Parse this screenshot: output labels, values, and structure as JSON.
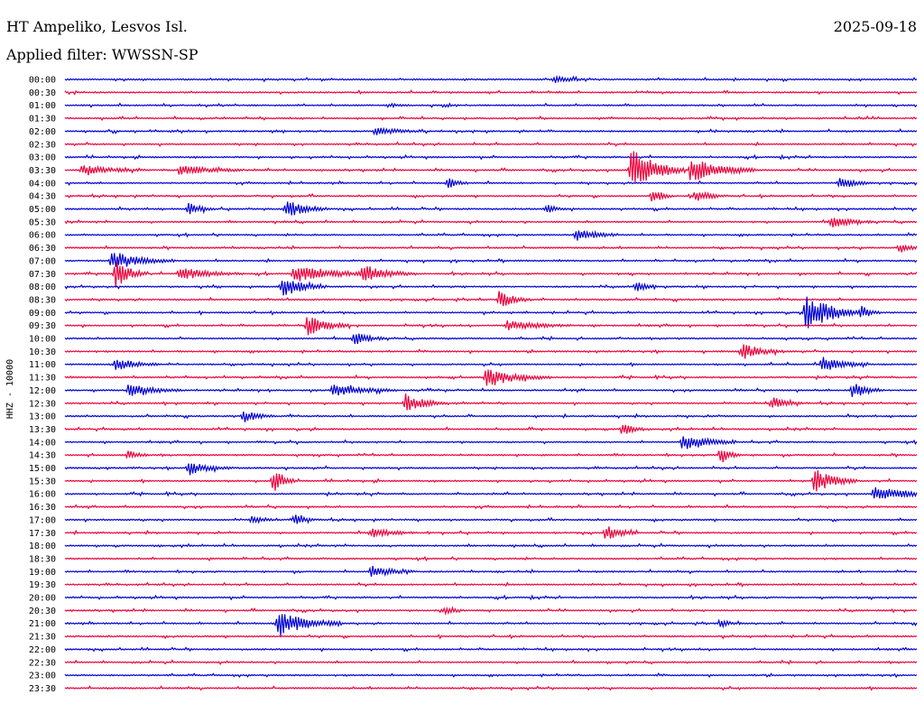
{
  "header": {
    "station": "HT Ampeliko, Lesvos Isl.",
    "date": "2025-09-18",
    "filter": "Applied filter: WWSSN-SP"
  },
  "side_label": "HHZ - 10000",
  "colors": {
    "blue": "#0000d8",
    "red": "#f0003c"
  },
  "chart_data": {
    "type": "line",
    "title": "HT Ampeliko, Lesvos Isl.",
    "subtitle": "Applied filter: WWSSN-SP",
    "ylabel": "HHZ - 10000",
    "y_categories": [
      "00:00",
      "00:30",
      "01:00",
      "01:30",
      "02:00",
      "02:30",
      "03:00",
      "03:30",
      "04:00",
      "04:30",
      "05:00",
      "05:30",
      "06:00",
      "06:30",
      "07:00",
      "07:30",
      "08:00",
      "08:30",
      "09:00",
      "09:30",
      "10:00",
      "10:30",
      "11:00",
      "11:30",
      "12:00",
      "12:30",
      "13:00",
      "13:30",
      "14:00",
      "14:30",
      "15:00",
      "15:30",
      "16:00",
      "16:30",
      "17:00",
      "17:30",
      "18:00",
      "18:30",
      "19:00",
      "19:30",
      "20:00",
      "20:30",
      "21:00",
      "21:30",
      "22:00",
      "22:30",
      "23:00",
      "23:30"
    ],
    "x_range_minutes": [
      0,
      30
    ],
    "trace_colors": [
      "blue",
      "red"
    ],
    "events": [
      {
        "row": 0,
        "x": 0.575,
        "amp": 4,
        "len": 0.015
      },
      {
        "row": 2,
        "x": 0.38,
        "amp": 2,
        "len": 0.01
      },
      {
        "row": 4,
        "x": 0.365,
        "amp": 5,
        "len": 0.02
      },
      {
        "row": 7,
        "x": 0.02,
        "amp": 5,
        "len": 0.03
      },
      {
        "row": 7,
        "x": 0.135,
        "amp": 6,
        "len": 0.03
      },
      {
        "row": 7,
        "x": 0.665,
        "amp": 28,
        "len": 0.025
      },
      {
        "row": 7,
        "x": 0.735,
        "amp": 14,
        "len": 0.03
      },
      {
        "row": 8,
        "x": 0.45,
        "amp": 6,
        "len": 0.01
      },
      {
        "row": 8,
        "x": 0.91,
        "amp": 7,
        "len": 0.015
      },
      {
        "row": 9,
        "x": 0.69,
        "amp": 8,
        "len": 0.01
      },
      {
        "row": 9,
        "x": 0.74,
        "amp": 7,
        "len": 0.015
      },
      {
        "row": 10,
        "x": 0.145,
        "amp": 8,
        "len": 0.012
      },
      {
        "row": 10,
        "x": 0.26,
        "amp": 10,
        "len": 0.02
      },
      {
        "row": 10,
        "x": 0.565,
        "amp": 5,
        "len": 0.01
      },
      {
        "row": 11,
        "x": 0.9,
        "amp": 6,
        "len": 0.02
      },
      {
        "row": 12,
        "x": 0.6,
        "amp": 8,
        "len": 0.02
      },
      {
        "row": 13,
        "x": 0.98,
        "amp": 5,
        "len": 0.015
      },
      {
        "row": 14,
        "x": 0.055,
        "amp": 10,
        "len": 0.03
      },
      {
        "row": 15,
        "x": 0.06,
        "amp": 16,
        "len": 0.015
      },
      {
        "row": 15,
        "x": 0.135,
        "amp": 7,
        "len": 0.03
      },
      {
        "row": 15,
        "x": 0.27,
        "amp": 9,
        "len": 0.04
      },
      {
        "row": 15,
        "x": 0.35,
        "amp": 9,
        "len": 0.025
      },
      {
        "row": 16,
        "x": 0.255,
        "amp": 13,
        "len": 0.02
      },
      {
        "row": 16,
        "x": 0.67,
        "amp": 6,
        "len": 0.01
      },
      {
        "row": 17,
        "x": 0.51,
        "amp": 10,
        "len": 0.015
      },
      {
        "row": 18,
        "x": 0.87,
        "amp": 20,
        "len": 0.03
      },
      {
        "row": 18,
        "x": 0.935,
        "amp": 5,
        "len": 0.01
      },
      {
        "row": 19,
        "x": 0.285,
        "amp": 11,
        "len": 0.02
      },
      {
        "row": 19,
        "x": 0.52,
        "amp": 6,
        "len": 0.03
      },
      {
        "row": 20,
        "x": 0.34,
        "amp": 7,
        "len": 0.015
      },
      {
        "row": 21,
        "x": 0.795,
        "amp": 9,
        "len": 0.02
      },
      {
        "row": 22,
        "x": 0.06,
        "amp": 7,
        "len": 0.02
      },
      {
        "row": 22,
        "x": 0.89,
        "amp": 9,
        "len": 0.02
      },
      {
        "row": 23,
        "x": 0.495,
        "amp": 11,
        "len": 0.03
      },
      {
        "row": 24,
        "x": 0.075,
        "amp": 7,
        "len": 0.025
      },
      {
        "row": 24,
        "x": 0.315,
        "amp": 7,
        "len": 0.03
      },
      {
        "row": 24,
        "x": 0.925,
        "amp": 10,
        "len": 0.015
      },
      {
        "row": 25,
        "x": 0.4,
        "amp": 11,
        "len": 0.02
      },
      {
        "row": 25,
        "x": 0.83,
        "amp": 7,
        "len": 0.015
      },
      {
        "row": 26,
        "x": 0.21,
        "amp": 7,
        "len": 0.015
      },
      {
        "row": 27,
        "x": 0.655,
        "amp": 8,
        "len": 0.01
      },
      {
        "row": 28,
        "x": 0.725,
        "amp": 9,
        "len": 0.025
      },
      {
        "row": 29,
        "x": 0.075,
        "amp": 5,
        "len": 0.01
      },
      {
        "row": 29,
        "x": 0.77,
        "amp": 10,
        "len": 0.01
      },
      {
        "row": 30,
        "x": 0.145,
        "amp": 8,
        "len": 0.02
      },
      {
        "row": 31,
        "x": 0.245,
        "amp": 14,
        "len": 0.01
      },
      {
        "row": 31,
        "x": 0.88,
        "amp": 14,
        "len": 0.02
      },
      {
        "row": 32,
        "x": 0.95,
        "amp": 8,
        "len": 0.04
      },
      {
        "row": 34,
        "x": 0.22,
        "amp": 5,
        "len": 0.01
      },
      {
        "row": 34,
        "x": 0.27,
        "amp": 7,
        "len": 0.01
      },
      {
        "row": 35,
        "x": 0.36,
        "amp": 5,
        "len": 0.02
      },
      {
        "row": 35,
        "x": 0.635,
        "amp": 9,
        "len": 0.015
      },
      {
        "row": 38,
        "x": 0.36,
        "amp": 7,
        "len": 0.02
      },
      {
        "row": 41,
        "x": 0.445,
        "amp": 4,
        "len": 0.01
      },
      {
        "row": 42,
        "x": 0.25,
        "amp": 16,
        "len": 0.03
      },
      {
        "row": 42,
        "x": 0.77,
        "amp": 4,
        "len": 0.01
      }
    ]
  }
}
